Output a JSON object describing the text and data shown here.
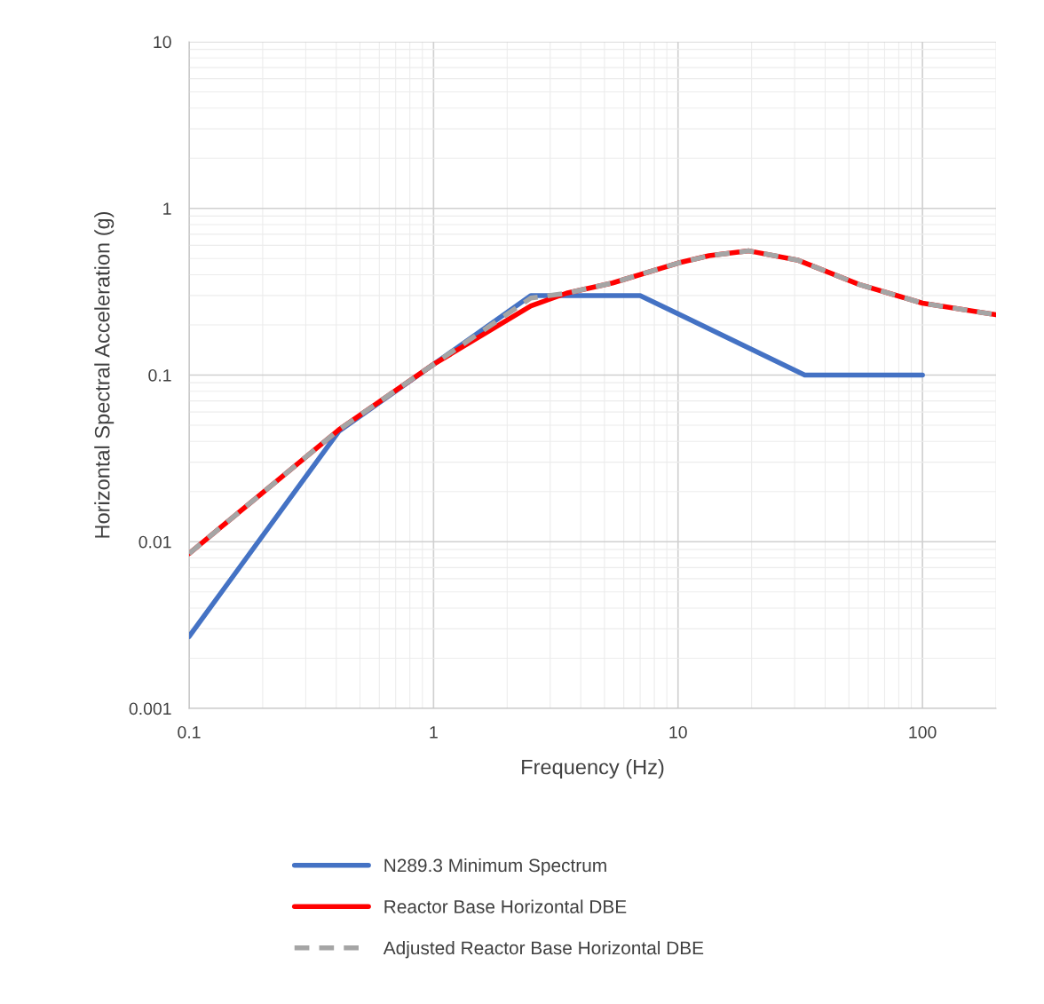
{
  "chart_data": {
    "type": "line",
    "xlabel": "Frequency (Hz)",
    "ylabel": "Horizontal Spectral Acceleration (g)",
    "log": "xy",
    "grid": true,
    "legend": "bottom",
    "xlim": [
      0.1,
      200
    ],
    "xticks": [
      0.1,
      1,
      10,
      100
    ],
    "ylim": [
      0.001,
      10
    ],
    "yticks": [
      0.001,
      0.01,
      0.1,
      1,
      10
    ],
    "series": [
      {
        "name": "N289.3 Minimum Spectrum",
        "color": "#4472c4",
        "line_style": "solid",
        "x": [
          0.1,
          0.41,
          2.5,
          7,
          33,
          100
        ],
        "values": [
          0.0027,
          0.046,
          0.3,
          0.3,
          0.1,
          0.1
        ]
      },
      {
        "name": "Reactor Base Horizontal DBE",
        "color": "#ff0000",
        "line_style": "solid",
        "x": [
          0.1,
          0.41,
          1,
          2.5,
          3.5,
          5.4,
          10,
          13.4,
          19.5,
          30.8,
          55,
          100,
          200
        ],
        "values": [
          0.0085,
          0.047,
          0.116,
          0.26,
          0.31,
          0.357,
          0.47,
          0.52,
          0.556,
          0.49,
          0.35,
          0.27,
          0.23
        ]
      },
      {
        "name": "Adjusted Reactor Base Horizontal DBE",
        "color": "#a5a5a5",
        "line_style": "dashed",
        "x": [
          0.1,
          0.41,
          1,
          2.5,
          3.5,
          5.4,
          10,
          13.4,
          19.5,
          30.8,
          55,
          100,
          200
        ],
        "values": [
          0.0085,
          0.047,
          0.116,
          0.29,
          0.31,
          0.357,
          0.47,
          0.52,
          0.556,
          0.49,
          0.35,
          0.27,
          0.23
        ]
      }
    ]
  }
}
